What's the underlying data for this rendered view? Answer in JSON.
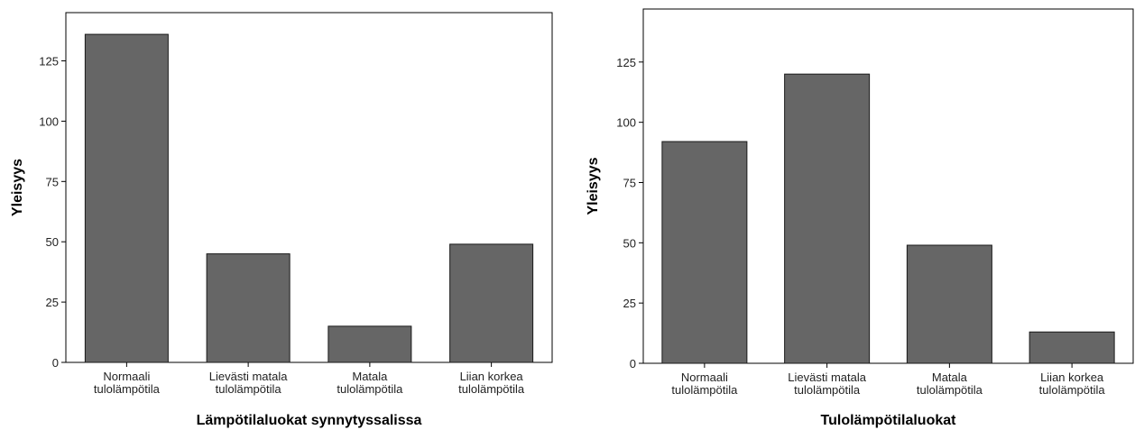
{
  "chart_data": [
    {
      "type": "bar",
      "categories": [
        [
          "Normaali",
          "tulolämpötila"
        ],
        [
          "Lievästi matala",
          "tulolämpötila"
        ],
        [
          "Matala",
          "tulolämpötila"
        ],
        [
          "Liian korkea",
          "tulolämpötila"
        ]
      ],
      "values": [
        136,
        45,
        15,
        49
      ],
      "title": "",
      "xlabel": "Lämpötilaluokat synnytyssalissa",
      "ylabel": "Yleisyys",
      "yticks": [
        0,
        25,
        50,
        75,
        100,
        125
      ],
      "ylim": [
        0,
        145
      ],
      "bar_color": "#666666",
      "grid": false
    },
    {
      "type": "bar",
      "categories": [
        [
          "Normaali",
          "tulolämpötila"
        ],
        [
          "Lievästi matala",
          "tulolämpötila"
        ],
        [
          "Matala",
          "tulolämpötila"
        ],
        [
          "Liian korkea",
          "tulolämpötila"
        ]
      ],
      "values": [
        92,
        120,
        49,
        13
      ],
      "title": "",
      "xlabel": "Tulolämpötilaluokat",
      "ylabel": "Yleisyys",
      "yticks": [
        0,
        25,
        50,
        75,
        100,
        125
      ],
      "ylim": [
        0,
        147
      ],
      "bar_color": "#666666",
      "grid": false
    }
  ]
}
